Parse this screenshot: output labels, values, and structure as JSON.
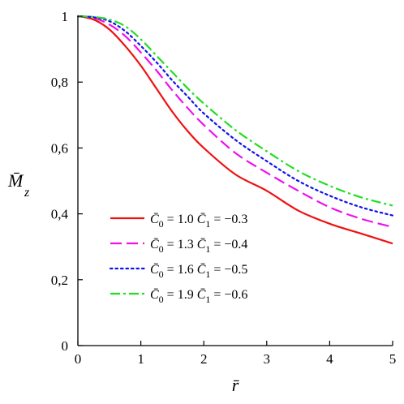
{
  "chart_data": {
    "type": "line",
    "xlabel": "r̄",
    "ylabel_main": "M̄",
    "ylabel_sub": "z",
    "xlim": [
      0,
      5
    ],
    "ylim": [
      0,
      1
    ],
    "xticks": [
      0,
      1,
      2,
      3,
      4,
      5
    ],
    "xtick_labels": [
      "0",
      "1",
      "2",
      "3",
      "4",
      "5"
    ],
    "yticks": [
      0,
      0.2,
      0.4,
      0.6,
      0.8,
      1
    ],
    "ytick_labels": [
      "0",
      "0,2",
      "0,4",
      "0,6",
      "0,8",
      "1"
    ],
    "grid": false,
    "legend_position": "center-left",
    "x": [
      0,
      0.25,
      0.5,
      0.75,
      1,
      1.25,
      1.5,
      1.75,
      2,
      2.5,
      3,
      3.5,
      4,
      4.5,
      5
    ],
    "series": [
      {
        "c0": "1.0",
        "c1": "−0.3",
        "color": "#ee1111",
        "style": "solid",
        "values": [
          1.0,
          0.99,
          0.96,
          0.91,
          0.85,
          0.78,
          0.71,
          0.65,
          0.6,
          0.52,
          0.47,
          0.41,
          0.37,
          0.34,
          0.31
        ]
      },
      {
        "c0": "1.3",
        "c1": "−0.4",
        "color": "#ee11ee",
        "style": "dashed",
        "values": [
          1.0,
          0.995,
          0.975,
          0.94,
          0.89,
          0.835,
          0.775,
          0.72,
          0.67,
          0.585,
          0.525,
          0.47,
          0.42,
          0.385,
          0.36
        ]
      },
      {
        "c0": "1.6",
        "c1": "−0.5",
        "color": "#1111ee",
        "style": "dotted",
        "values": [
          1.0,
          0.997,
          0.985,
          0.955,
          0.91,
          0.86,
          0.805,
          0.755,
          0.705,
          0.625,
          0.56,
          0.5,
          0.455,
          0.42,
          0.395
        ]
      },
      {
        "c0": "1.9",
        "c1": "−0.6",
        "color": "#22dd22",
        "style": "dashdot",
        "values": [
          1.0,
          0.998,
          0.99,
          0.97,
          0.93,
          0.88,
          0.83,
          0.78,
          0.735,
          0.655,
          0.59,
          0.53,
          0.485,
          0.45,
          0.425
        ]
      }
    ]
  }
}
